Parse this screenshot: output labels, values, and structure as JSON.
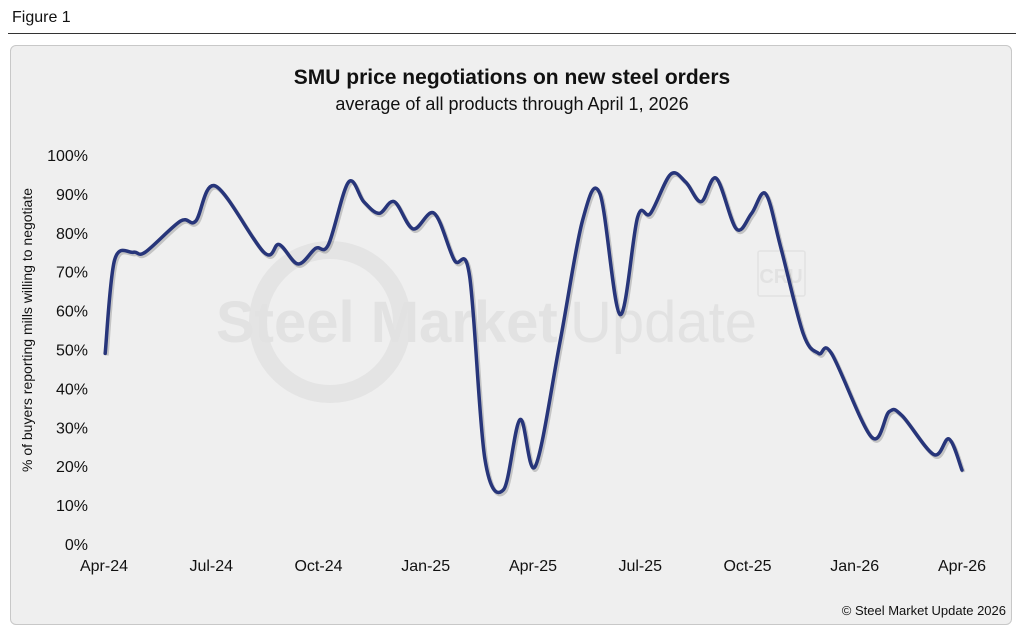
{
  "figure_label": "Figure 1",
  "copyright": "© Steel Market Update 2026",
  "watermark": {
    "text_bold": "Steel Market",
    "text_light": "Update",
    "badge": "CRU"
  },
  "colors": {
    "line": "#27357a",
    "background": "#efefef"
  },
  "chart_data": {
    "type": "line",
    "title": "SMU price negotiations on new steel orders",
    "subtitle": "average of all products through April 1, 2026",
    "xlabel": "",
    "ylabel": "% of buyers reporting mills willing to negotiate",
    "ylim": [
      0,
      100
    ],
    "yticks": [
      "0%",
      "10%",
      "20%",
      "30%",
      "40%",
      "50%",
      "60%",
      "70%",
      "80%",
      "90%",
      "100%"
    ],
    "xticks": [
      "Apr-24",
      "Jul-24",
      "Oct-24",
      "Jan-25",
      "Apr-25",
      "Jul-25",
      "Oct-25",
      "Jan-26",
      "Apr-26"
    ],
    "grid": false,
    "legend": "none",
    "x": [
      "2024-04-02",
      "2024-04-10",
      "2024-04-26",
      "2024-05-06",
      "2024-06-05",
      "2024-06-18",
      "2024-07-05",
      "2024-08-15",
      "2024-08-28",
      "2024-09-13",
      "2024-09-28",
      "2024-10-09",
      "2024-10-26",
      "2024-11-08",
      "2024-11-21",
      "2024-12-04",
      "2024-12-20",
      "2025-01-07",
      "2025-01-24",
      "2025-02-06",
      "2025-02-19",
      "2025-03-07",
      "2025-03-21",
      "2025-04-03",
      "2025-04-24",
      "2025-05-13",
      "2025-05-28",
      "2025-06-14",
      "2025-06-29",
      "2025-07-10",
      "2025-07-27",
      "2025-08-09",
      "2025-08-22",
      "2025-09-04",
      "2025-09-21",
      "2025-10-04",
      "2025-10-16",
      "2025-10-29",
      "2025-11-17",
      "2025-11-30",
      "2025-12-11",
      "2026-01-14",
      "2026-01-29",
      "2026-02-09",
      "2026-03-08",
      "2026-03-21",
      "2026-04-01"
    ],
    "values": [
      49,
      73,
      75,
      75,
      83,
      83,
      92,
      75,
      77,
      72,
      76,
      77,
      93,
      88,
      85,
      88,
      81,
      85,
      73,
      69,
      22,
      14,
      32,
      20,
      52,
      83,
      90,
      59,
      84,
      85,
      95,
      93,
      88,
      94,
      81,
      85,
      90,
      76,
      54,
      49,
      49,
      27.5,
      34,
      33,
      23,
      27,
      19
    ]
  }
}
